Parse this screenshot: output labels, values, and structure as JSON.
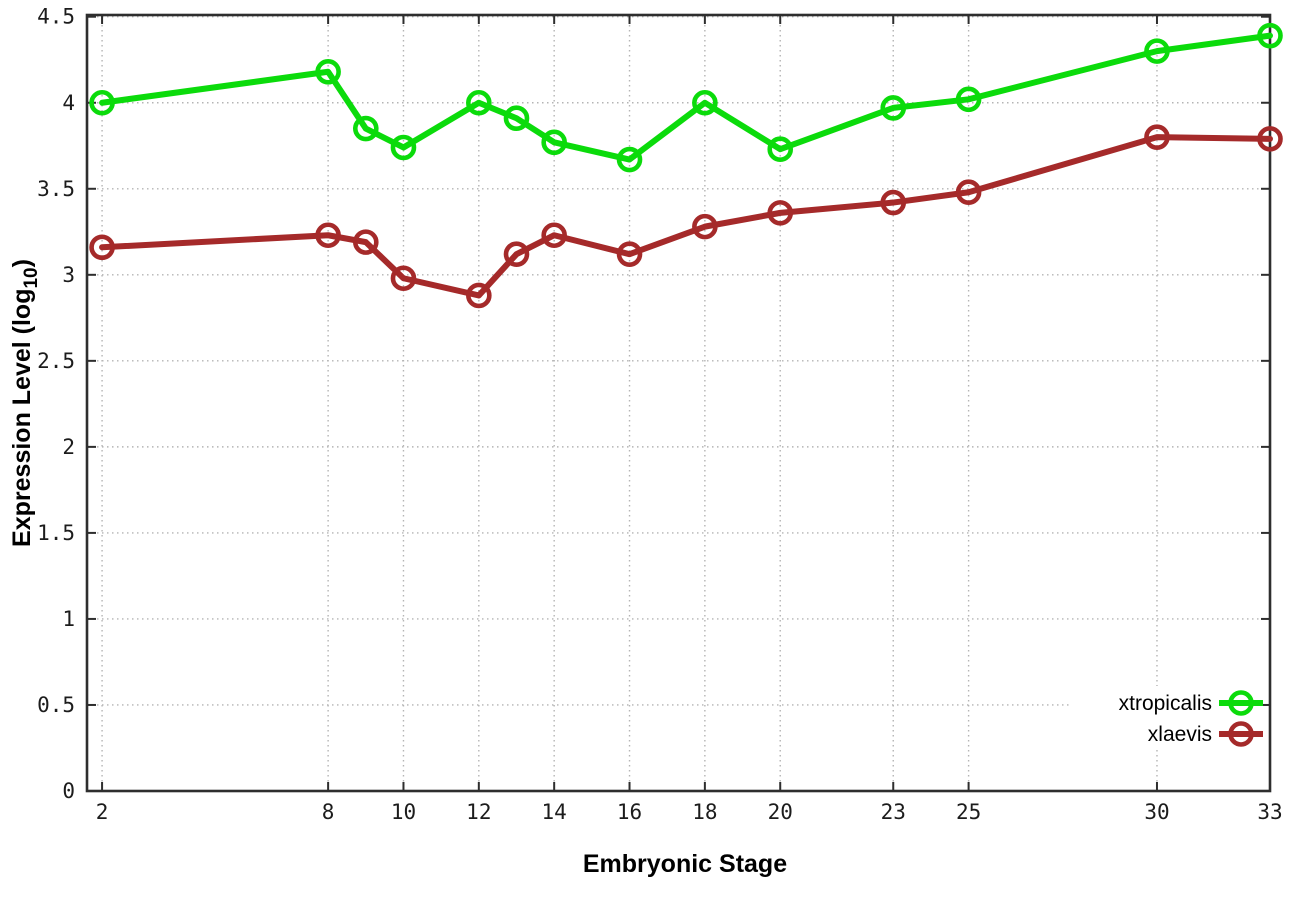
{
  "figure": {
    "xlabel": "Embryonic Stage",
    "ylabel_main": "Expression Level (log",
    "ylabel_sub": "10",
    "ylabel_close": ")"
  },
  "chart_data": {
    "type": "line",
    "title": "",
    "xlabel": "Embryonic Stage",
    "ylabel": "Expression Level (log10)",
    "x": [
      2,
      8,
      9,
      10,
      12,
      13,
      14,
      16,
      18,
      20,
      23,
      25,
      30,
      33
    ],
    "series": [
      {
        "name": "xtropicalis",
        "color": "#0bdb0b",
        "values": [
          4.0,
          4.18,
          3.85,
          3.74,
          4.0,
          3.91,
          3.77,
          3.67,
          4.0,
          3.73,
          3.97,
          4.02,
          4.3,
          4.39
        ]
      },
      {
        "name": "xlaevis",
        "color": "#a52a2a",
        "values": [
          3.16,
          3.23,
          3.19,
          2.98,
          2.88,
          3.12,
          3.23,
          3.12,
          3.28,
          3.36,
          3.42,
          3.48,
          3.8,
          3.79
        ]
      }
    ],
    "xticks": [
      2,
      8,
      10,
      12,
      14,
      16,
      18,
      20,
      23,
      25,
      30,
      33
    ],
    "yticks": [
      0,
      0.5,
      1,
      1.5,
      2,
      2.5,
      3,
      3.5,
      4,
      4.5
    ],
    "ytick_labels": [
      "0",
      "0.5",
      "1",
      "1.5",
      "2",
      "2.5",
      "3",
      "3.5",
      "4",
      "4.5"
    ],
    "xlim": [
      1.6,
      33
    ],
    "ylim": [
      0,
      4.51
    ],
    "grid": true,
    "legend_position": "inside-bottom-right",
    "axis_color": "#2e2e2e",
    "grid_color": "#b4b4b4"
  }
}
